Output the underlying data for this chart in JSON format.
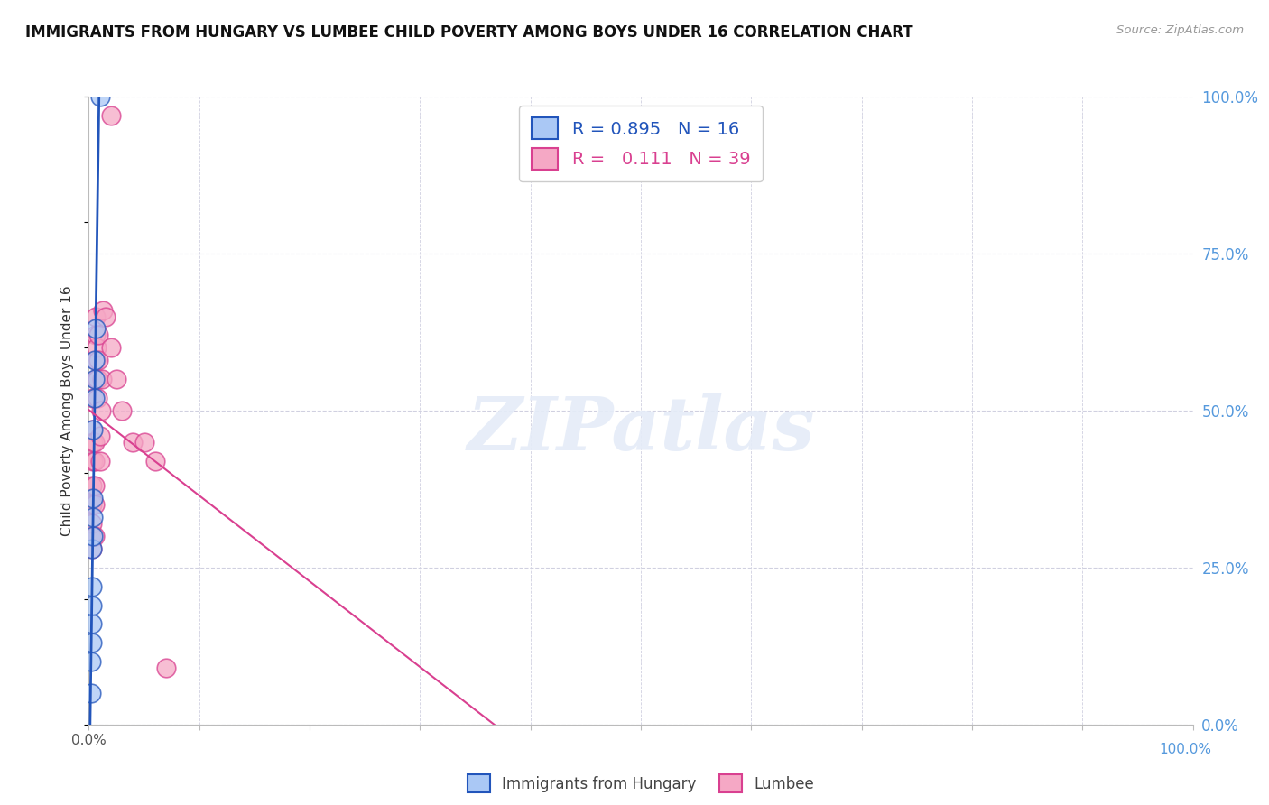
{
  "title": "IMMIGRANTS FROM HUNGARY VS LUMBEE CHILD POVERTY AMONG BOYS UNDER 16 CORRELATION CHART",
  "source": "Source: ZipAtlas.com",
  "ylabel": "Child Poverty Among Boys Under 16",
  "ytick_labels": [
    "0.0%",
    "25.0%",
    "50.0%",
    "75.0%",
    "100.0%"
  ],
  "ytick_values": [
    0.0,
    0.25,
    0.5,
    0.75,
    1.0
  ],
  "xlim": [
    0.0,
    1.0
  ],
  "ylim": [
    0.0,
    1.0
  ],
  "hungary_R": 0.895,
  "hungary_N": 16,
  "lumbee_R": 0.111,
  "lumbee_N": 39,
  "hungary_color": "#aac8f5",
  "lumbee_color": "#f5a8c5",
  "hungary_line_color": "#2255bb",
  "lumbee_line_color": "#d94090",
  "background_color": "#ffffff",
  "grid_color": "#d0d0e0",
  "hungary_x": [
    0.002,
    0.002,
    0.003,
    0.003,
    0.003,
    0.003,
    0.003,
    0.004,
    0.004,
    0.004,
    0.004,
    0.005,
    0.005,
    0.005,
    0.006,
    0.01
  ],
  "hungary_y": [
    0.05,
    0.1,
    0.13,
    0.16,
    0.19,
    0.22,
    0.28,
    0.3,
    0.33,
    0.36,
    0.47,
    0.52,
    0.55,
    0.58,
    0.63,
    1.0
  ],
  "lumbee_x": [
    0.002,
    0.002,
    0.003,
    0.003,
    0.003,
    0.003,
    0.003,
    0.004,
    0.004,
    0.004,
    0.005,
    0.005,
    0.005,
    0.005,
    0.005,
    0.006,
    0.006,
    0.006,
    0.006,
    0.007,
    0.007,
    0.008,
    0.008,
    0.009,
    0.009,
    0.01,
    0.01,
    0.011,
    0.012,
    0.013,
    0.015,
    0.02,
    0.025,
    0.03,
    0.04,
    0.05,
    0.06,
    0.07,
    0.02
  ],
  "lumbee_y": [
    0.3,
    0.36,
    0.28,
    0.32,
    0.35,
    0.38,
    0.47,
    0.42,
    0.45,
    0.52,
    0.3,
    0.35,
    0.38,
    0.42,
    0.45,
    0.55,
    0.58,
    0.62,
    0.65,
    0.55,
    0.6,
    0.52,
    0.55,
    0.58,
    0.62,
    0.42,
    0.46,
    0.5,
    0.55,
    0.66,
    0.65,
    0.6,
    0.55,
    0.5,
    0.45,
    0.45,
    0.42,
    0.09,
    0.97
  ]
}
